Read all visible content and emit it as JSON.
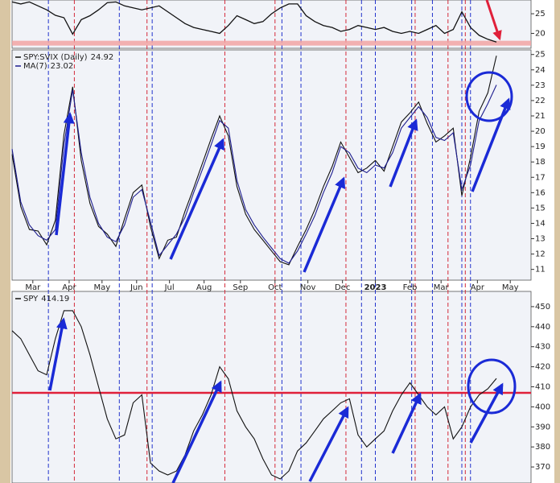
{
  "chart_data": [
    {
      "type": "line",
      "color": "#111111",
      "x": [
        0,
        5,
        10,
        15,
        20,
        25,
        30,
        35,
        40,
        45,
        50,
        55,
        60,
        65,
        70,
        75,
        80,
        85,
        90,
        95,
        100,
        105,
        110,
        115,
        120,
        125,
        130,
        135,
        140,
        145,
        150,
        155,
        160,
        165,
        170,
        175,
        180,
        185,
        190,
        195,
        200,
        205,
        210,
        215,
        220,
        225,
        230,
        235,
        240,
        245,
        250,
        255,
        260,
        265,
        270,
        275,
        280
      ],
      "values": [
        28,
        27.5,
        28,
        27,
        26,
        24.6,
        24,
        19.8,
        23.5,
        24.5,
        26,
        27.8,
        28,
        27,
        26.5,
        26,
        26.5,
        27,
        25.5,
        24,
        22.5,
        21.5,
        21,
        20.5,
        20,
        22,
        24.5,
        23.5,
        22.5,
        23,
        25,
        26.5,
        27.5,
        27.5,
        24.5,
        23,
        22,
        21.5,
        20.5,
        21,
        22,
        21.5,
        21,
        21.5,
        20.5,
        20,
        20.5,
        20,
        21,
        22,
        20,
        21,
        25.5,
        21.5,
        19.5,
        18.5,
        17.8
      ],
      "xlim": [
        0,
        300
      ],
      "ylim": [
        16.2,
        28.5
      ],
      "yticks": [
        20,
        25
      ],
      "hline": 17.5,
      "hline_color": "#f2a3a3"
    },
    {
      "type": "line",
      "x": [
        0,
        5,
        10,
        15,
        20,
        25,
        30,
        35,
        40,
        45,
        50,
        55,
        60,
        65,
        70,
        75,
        80,
        85,
        90,
        95,
        100,
        105,
        110,
        115,
        120,
        125,
        130,
        135,
        140,
        145,
        150,
        155,
        160,
        165,
        170,
        175,
        180,
        185,
        190,
        195,
        200,
        205,
        210,
        215,
        220,
        225,
        230,
        235,
        240,
        245,
        250,
        255,
        260,
        265,
        270,
        275,
        280
      ],
      "series": [
        {
          "name": "SPY:SVIX (Daily)",
          "color": "#111111",
          "last": 24.92,
          "values": [
            18.5,
            15.1,
            13.6,
            13.5,
            12.6,
            14.2,
            19.8,
            22.9,
            18.1,
            15.3,
            13.8,
            13.3,
            12.5,
            14.3,
            16,
            16.5,
            13.8,
            11.7,
            12.9,
            13.1,
            14.8,
            16.3,
            17.9,
            19.5,
            21,
            19.7,
            16.4,
            14.6,
            13.6,
            12.9,
            12.2,
            11.5,
            11.3,
            12.5,
            13.6,
            14.9,
            16.4,
            17.7,
            19.3,
            18.3,
            17.3,
            17.6,
            18.1,
            17.4,
            19,
            20.6,
            21.2,
            21.9,
            20.5,
            19.3,
            19.7,
            20.2,
            15.8,
            18.3,
            21.3,
            22.5,
            24.92
          ]
        },
        {
          "name": "MA(7)",
          "color": "#1d1d8f",
          "last": 23.02,
          "values": [
            18.85,
            15.4,
            13.9,
            13.2,
            12.9,
            13.6,
            19.1,
            22.7,
            18.6,
            15.7,
            14,
            13.1,
            12.8,
            13.9,
            15.7,
            16.2,
            14.1,
            11.9,
            12.6,
            13.3,
            14.4,
            16,
            17.5,
            19.1,
            20.7,
            20.2,
            16.8,
            14.9,
            13.9,
            13.1,
            12.4,
            11.7,
            11.4,
            12.2,
            13.3,
            14.5,
            16,
            17.3,
            19,
            18.6,
            17.6,
            17.3,
            17.8,
            17.6,
            18.6,
            20.2,
            20.9,
            21.6,
            20.9,
            19.6,
            19.4,
            19.9,
            16.2,
            17.8,
            20.7,
            21.8,
            23.02
          ]
        }
      ],
      "xlim": [
        0,
        300
      ],
      "ylim": [
        10.3,
        25.3
      ],
      "yticks": [
        11,
        12,
        13,
        14,
        15,
        16,
        17,
        18,
        19,
        20,
        21,
        22,
        23,
        24,
        25
      ],
      "xticks": [
        {
          "value": 12,
          "label": "Mar"
        },
        {
          "value": 33,
          "label": "Apr"
        },
        {
          "value": 52,
          "label": "May"
        },
        {
          "value": 72,
          "label": "Jun"
        },
        {
          "value": 91,
          "label": "Jul"
        },
        {
          "value": 111,
          "label": "Aug"
        },
        {
          "value": 132,
          "label": "Sep"
        },
        {
          "value": 152,
          "label": "Oct"
        },
        {
          "value": 171,
          "label": "Nov"
        },
        {
          "value": 191,
          "label": "Dec"
        },
        {
          "value": 210,
          "label": "2023"
        },
        {
          "value": 230,
          "label": "Feb"
        },
        {
          "value": 248,
          "label": "Mar"
        },
        {
          "value": 269,
          "label": "Apr"
        },
        {
          "value": 288,
          "label": "May"
        }
      ],
      "vlines": [
        {
          "x": 21,
          "color": "#2233cc"
        },
        {
          "x": 36,
          "color": "#d42a3a"
        },
        {
          "x": 62,
          "color": "#2233cc"
        },
        {
          "x": 78,
          "color": "#d42a3a"
        },
        {
          "x": 81,
          "color": "#2233cc"
        },
        {
          "x": 123,
          "color": "#d42a3a"
        },
        {
          "x": 152,
          "color": "#d42a3a"
        },
        {
          "x": 156,
          "color": "#2233cc"
        },
        {
          "x": 167,
          "color": "#2233cc"
        },
        {
          "x": 193,
          "color": "#d42a3a"
        },
        {
          "x": 202,
          "color": "#2233cc"
        },
        {
          "x": 210,
          "color": "#2233cc"
        },
        {
          "x": 231,
          "color": "#2233cc"
        },
        {
          "x": 233,
          "color": "#d42a3a"
        },
        {
          "x": 243,
          "color": "#2233cc"
        },
        {
          "x": 252,
          "color": "#d42a3a"
        },
        {
          "x": 260,
          "color": "#2233cc"
        },
        {
          "x": 262,
          "color": "#d42a3a"
        },
        {
          "x": 265,
          "color": "#2233cc"
        }
      ]
    },
    {
      "type": "line",
      "x": [
        0,
        5,
        10,
        15,
        20,
        25,
        30,
        35,
        40,
        45,
        50,
        55,
        60,
        65,
        70,
        75,
        80,
        85,
        90,
        95,
        100,
        105,
        110,
        115,
        120,
        125,
        130,
        135,
        140,
        145,
        150,
        155,
        160,
        165,
        170,
        175,
        180,
        185,
        190,
        195,
        200,
        205,
        210,
        215,
        220,
        225,
        230,
        235,
        240,
        245,
        250,
        255,
        260,
        265,
        270,
        275,
        280
      ],
      "series": [
        {
          "name": "SPY",
          "color": "#111111",
          "last": 414.19,
          "values": [
            438,
            434,
            426,
            418,
            416,
            434,
            448,
            448,
            440,
            426,
            410,
            394,
            384,
            386,
            402,
            406,
            372,
            368,
            366,
            368,
            376,
            388,
            396,
            406,
            420,
            414,
            398,
            390,
            384,
            374,
            366,
            364,
            368,
            378,
            382,
            388,
            394,
            398,
            402,
            404,
            386,
            380,
            384,
            388,
            398,
            406,
            412,
            406,
            400,
            396,
            400,
            384,
            390,
            400,
            406,
            409,
            414.19
          ]
        }
      ],
      "xlim": [
        0,
        300
      ],
      "ylim": [
        362,
        457.6
      ],
      "yticks": [
        370,
        380,
        390,
        400,
        410,
        420,
        430,
        440,
        450
      ],
      "hline": 407,
      "hline_color": "#e0203a"
    }
  ]
}
